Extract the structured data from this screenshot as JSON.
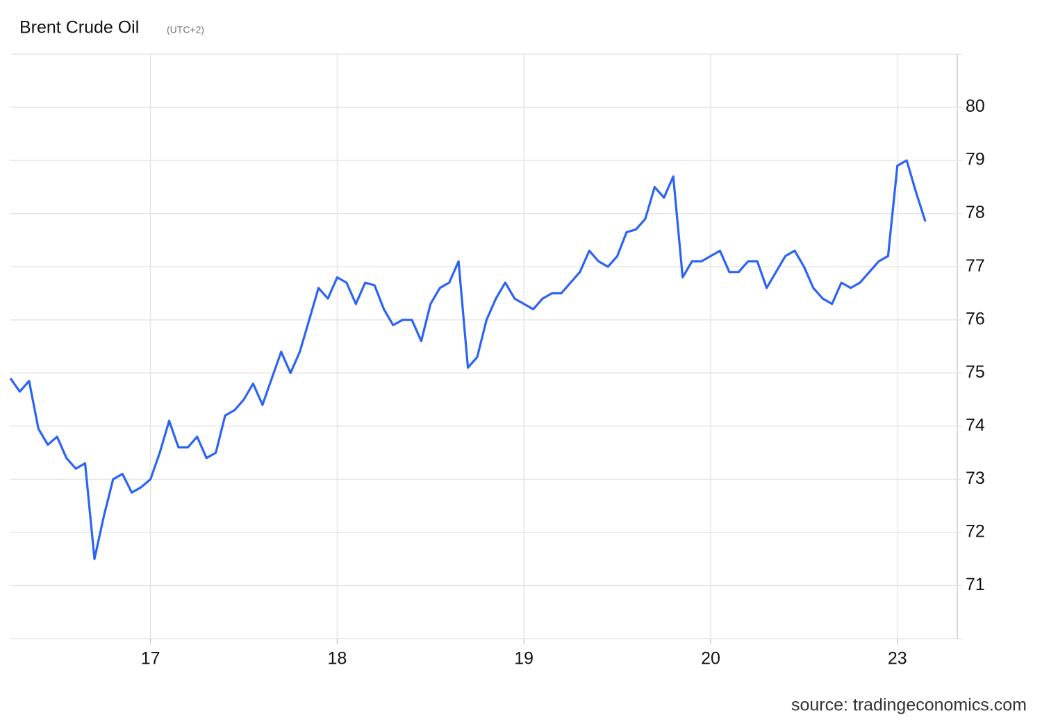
{
  "chart_data": {
    "type": "line",
    "title": "Brent Crude Oil",
    "subtitle": "(UTC+2)",
    "source": "source: tradingeconomics.com",
    "categories": [
      null,
      null,
      null,
      null,
      null,
      null,
      null,
      null,
      null,
      null,
      null,
      null,
      null,
      null,
      null,
      "17",
      null,
      null,
      null,
      null,
      null,
      null,
      null,
      null,
      null,
      null,
      null,
      null,
      null,
      null,
      null,
      null,
      null,
      null,
      null,
      "18",
      null,
      null,
      null,
      null,
      null,
      null,
      null,
      null,
      null,
      null,
      null,
      null,
      null,
      null,
      null,
      null,
      null,
      null,
      null,
      "19",
      null,
      null,
      null,
      null,
      null,
      null,
      null,
      null,
      null,
      null,
      null,
      null,
      null,
      null,
      null,
      null,
      null,
      null,
      null,
      "20",
      null,
      null,
      null,
      null,
      null,
      null,
      null,
      null,
      null,
      null,
      null,
      null,
      null,
      null,
      null,
      null,
      null,
      null,
      null,
      "23",
      null,
      null,
      null
    ],
    "series": [
      {
        "name": "Brent Crude Oil",
        "color": "#2b63f5",
        "values": [
          74.9,
          74.65,
          74.85,
          73.95,
          73.65,
          73.8,
          73.4,
          73.2,
          73.3,
          71.5,
          72.3,
          73.0,
          73.1,
          72.75,
          72.85,
          73.0,
          73.5,
          74.1,
          73.6,
          73.6,
          73.8,
          73.4,
          73.5,
          74.2,
          74.3,
          74.5,
          74.8,
          74.4,
          74.9,
          75.4,
          75.0,
          75.4,
          76.0,
          76.6,
          76.4,
          76.8,
          76.7,
          76.3,
          76.7,
          76.65,
          76.2,
          75.9,
          76.0,
          76.0,
          75.6,
          76.3,
          76.6,
          76.7,
          77.1,
          75.1,
          75.3,
          76.0,
          76.4,
          76.7,
          76.4,
          76.3,
          76.2,
          76.4,
          76.5,
          76.5,
          76.7,
          76.9,
          77.3,
          77.1,
          77.0,
          77.2,
          77.65,
          77.7,
          77.9,
          78.5,
          78.3,
          78.7,
          76.8,
          77.1,
          77.1,
          77.2,
          77.3,
          76.9,
          76.9,
          77.1,
          77.1,
          76.6,
          76.9,
          77.2,
          77.3,
          77.0,
          76.6,
          76.4,
          76.3,
          76.7,
          76.6,
          76.7,
          76.9,
          77.1,
          77.2,
          78.9,
          79.0,
          78.4,
          77.85
        ]
      }
    ],
    "ylim": [
      70,
      81
    ],
    "yticks": [
      71,
      72,
      73,
      74,
      75,
      76,
      77,
      78,
      79,
      80
    ],
    "grid": true
  }
}
